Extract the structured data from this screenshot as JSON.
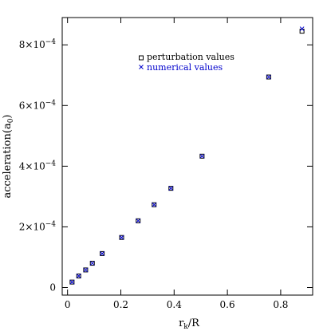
{
  "chart_data": {
    "type": "scatter",
    "xlabel": "r",
    "xlabel_sub": "k",
    "xlabel_suffix": "/R",
    "ylabel": "acceleration(a",
    "ylabel_sub": "0",
    "ylabel_suffix": ")",
    "xlim": [
      -0.02,
      0.92
    ],
    "ylim": [
      -2.5e-05,
      0.00089
    ],
    "x_ticks": [
      {
        "value": 0,
        "label": "0"
      },
      {
        "value": 0.2,
        "label": "0.2"
      },
      {
        "value": 0.4,
        "label": "0.4"
      },
      {
        "value": 0.6,
        "label": "0.6"
      },
      {
        "value": 0.8,
        "label": "0.8"
      }
    ],
    "y_ticks": [
      {
        "value": 0,
        "mantissa": "0",
        "exp": ""
      },
      {
        "value": 0.0002,
        "mantissa": "2×10",
        "exp": "−4"
      },
      {
        "value": 0.0004,
        "mantissa": "4×10",
        "exp": "−4"
      },
      {
        "value": 0.0006,
        "mantissa": "6×10",
        "exp": "−4"
      },
      {
        "value": 0.0008,
        "mantissa": "8×10",
        "exp": "−4"
      }
    ],
    "grid": false,
    "legend_position": "top-center",
    "series": [
      {
        "name": "perturbation values",
        "marker": "open-square",
        "color": "#000000",
        "x": [
          0.017,
          0.042,
          0.068,
          0.093,
          0.13,
          0.203,
          0.265,
          0.325,
          0.388,
          0.505,
          0.755,
          0.88
        ],
        "y": [
          1.8e-05,
          3.8e-05,
          5.8e-05,
          8e-05,
          0.000112,
          0.000165,
          0.00022,
          0.000273,
          0.000327,
          0.000433,
          0.000694,
          0.000845
        ]
      },
      {
        "name": "numerical values",
        "marker": "cross",
        "color": "#0000cc",
        "x": [
          0.017,
          0.042,
          0.068,
          0.093,
          0.13,
          0.203,
          0.265,
          0.325,
          0.388,
          0.505,
          0.755,
          0.88
        ],
        "y": [
          1.8e-05,
          3.8e-05,
          5.8e-05,
          8e-05,
          0.000112,
          0.000165,
          0.00022,
          0.000273,
          0.000327,
          0.000433,
          0.000694,
          0.000853
        ]
      }
    ]
  }
}
